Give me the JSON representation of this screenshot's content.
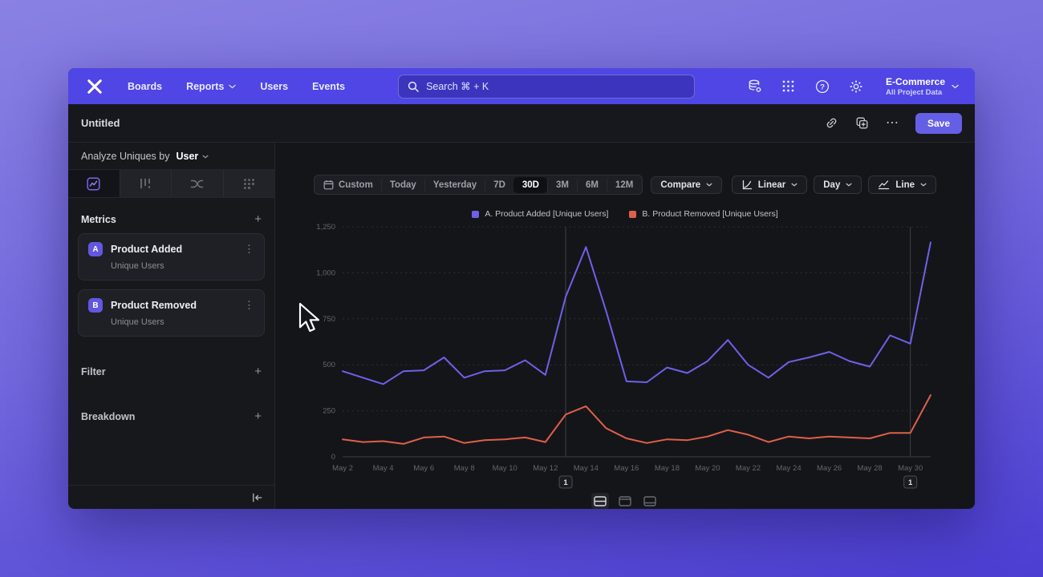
{
  "nav": {
    "items": [
      {
        "label": "Boards",
        "dropdown": false
      },
      {
        "label": "Reports",
        "dropdown": true
      },
      {
        "label": "Users",
        "dropdown": false
      },
      {
        "label": "Events",
        "dropdown": false
      }
    ],
    "search_placeholder": "Search  ⌘ + K",
    "project_name": "E-Commerce",
    "project_subtitle": "All Project Data"
  },
  "header": {
    "title": "Untitled",
    "save_label": "Save",
    "more_glyph": "⋯"
  },
  "sidebar": {
    "analyze_prefix": "Analyze Uniques by",
    "analyze_value": "User",
    "metrics_title": "Metrics",
    "filter_title": "Filter",
    "breakdown_title": "Breakdown",
    "plus_glyph": "+",
    "kebab_glyph": "⋮",
    "metrics": [
      {
        "badge": "A",
        "name": "Product Added",
        "subtitle": "Unique Users"
      },
      {
        "badge": "B",
        "name": "Product Removed",
        "subtitle": "Unique Users"
      }
    ]
  },
  "toolbar": {
    "date_ranges": [
      "Custom",
      "Today",
      "Yesterday",
      "7D",
      "30D",
      "3M",
      "6M",
      "12M"
    ],
    "selected_range": "30D",
    "compare_label": "Compare",
    "scale_label": "Linear",
    "granularity_label": "Day",
    "chart_type_label": "Line"
  },
  "chart_data": {
    "type": "line",
    "title": "",
    "xlabel": "",
    "ylabel": "",
    "grid": "horizontal-dashed",
    "legend_position": "top-center",
    "ylim": [
      0,
      1250
    ],
    "yticks": [
      0,
      250,
      500,
      750,
      1000,
      1250
    ],
    "ytick_labels": [
      "0",
      "250",
      "500",
      "750",
      "1,000",
      "1,250"
    ],
    "x": [
      "May 2",
      "May 3",
      "May 4",
      "May 5",
      "May 6",
      "May 7",
      "May 8",
      "May 9",
      "May 10",
      "May 11",
      "May 12",
      "May 13",
      "May 14",
      "May 15",
      "May 16",
      "May 17",
      "May 18",
      "May 19",
      "May 20",
      "May 21",
      "May 22",
      "May 23",
      "May 24",
      "May 25",
      "May 26",
      "May 27",
      "May 28",
      "May 29",
      "May 30",
      "May 31"
    ],
    "xtick_every": 2,
    "xtick_labels": [
      "May 2",
      "May 4",
      "May 6",
      "May 8",
      "May 10",
      "May 12",
      "May 14",
      "May 16",
      "May 18",
      "May 20",
      "May 22",
      "May 24",
      "May 26",
      "May 28",
      "May 30"
    ],
    "series": [
      {
        "name": "A. Product Added [Unique Users]",
        "color": "#6e61e8",
        "values": [
          465,
          430,
          395,
          465,
          470,
          540,
          430,
          465,
          470,
          525,
          445,
          870,
          1140,
          790,
          410,
          405,
          485,
          455,
          520,
          635,
          500,
          430,
          515,
          540,
          570,
          520,
          490,
          660,
          615,
          1165
        ]
      },
      {
        "name": "B. Product Removed [Unique Users]",
        "color": "#e05f4a",
        "values": [
          95,
          80,
          85,
          70,
          105,
          110,
          75,
          90,
          95,
          105,
          80,
          230,
          275,
          155,
          100,
          75,
          95,
          90,
          110,
          145,
          120,
          80,
          110,
          100,
          110,
          105,
          100,
          130,
          130,
          335
        ]
      }
    ],
    "annotations": [
      {
        "x": "May 13",
        "index": 11,
        "label": "1"
      },
      {
        "x": "May 30",
        "index": 28,
        "label": "1"
      }
    ]
  },
  "colors": {
    "nav_bg": "#4f46e5",
    "window_bg": "#141519",
    "accent": "#655fe6",
    "series_a": "#6e61e8",
    "series_b": "#e05f4a",
    "grid": "#2e3037",
    "axis_text": "#63666e"
  }
}
